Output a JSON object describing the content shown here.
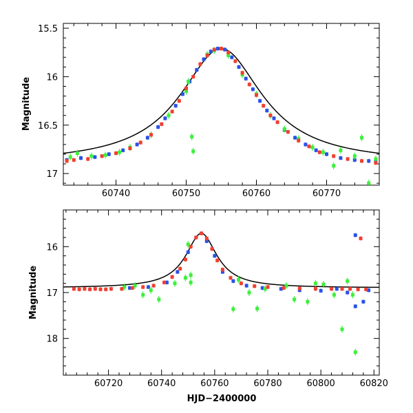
{
  "figure": {
    "xlabel": "HJD−2400000"
  },
  "chart_data": [
    {
      "type": "scatter",
      "name": "zoom-panel",
      "ylabel": "Magnitude",
      "xlim": [
        60732.5,
        60777.5
      ],
      "ylim": [
        17.12,
        15.45
      ],
      "inverted_y": true,
      "xticks": [
        60740,
        60750,
        60760,
        60770
      ],
      "yticks": [
        15.5,
        16,
        16.5,
        17
      ],
      "ytick_labels": [
        "15.5",
        "16",
        "16.5",
        "17"
      ],
      "model_curve": {
        "color": "#000000",
        "baseline_mag": 16.9,
        "peak_mag": 15.71,
        "t0": 60755.0,
        "tE": 8.0
      },
      "series": [
        {
          "color": "#2a52e8",
          "points": [
            [
              60733.0,
              16.86
            ],
            [
              60735.0,
              16.84
            ],
            [
              60737.0,
              16.83
            ],
            [
              60739.0,
              16.8
            ],
            [
              60741.0,
              16.76
            ],
            [
              60743.0,
              16.7
            ],
            [
              60744.5,
              16.63
            ],
            [
              60746.0,
              16.52
            ],
            [
              60747.0,
              16.43
            ],
            [
              60748.5,
              16.3
            ],
            [
              60749.5,
              16.18
            ],
            [
              60750.5,
              16.05
            ],
            [
              60751.5,
              15.93
            ],
            [
              60752.5,
              15.82
            ],
            [
              60753.5,
              15.74
            ],
            [
              60754.5,
              15.71
            ],
            [
              60755.5,
              15.72
            ],
            [
              60756.5,
              15.8
            ],
            [
              60757.5,
              15.9
            ],
            [
              60758.5,
              16.02
            ],
            [
              60759.5,
              16.13
            ],
            [
              60760.5,
              16.25
            ],
            [
              60761.5,
              16.35
            ],
            [
              60762.5,
              16.43
            ],
            [
              60764.0,
              16.55
            ],
            [
              60765.5,
              16.63
            ],
            [
              60767.0,
              16.7
            ],
            [
              60768.5,
              16.76
            ],
            [
              60770.0,
              16.8
            ],
            [
              60772.0,
              16.84
            ],
            [
              60774.0,
              16.86
            ],
            [
              60776.0,
              16.87
            ],
            [
              60777.0,
              16.88
            ]
          ]
        },
        {
          "color": "#3cf03c",
          "points": [
            [
              60733.5,
              16.83
            ],
            [
              60734.5,
              16.79
            ],
            [
              60736.5,
              16.82
            ],
            [
              60738.5,
              16.81
            ],
            [
              60740.5,
              16.78
            ],
            [
              60742.0,
              16.73
            ],
            [
              60745.0,
              16.6
            ],
            [
              60747.5,
              16.4
            ],
            [
              60750.0,
              16.15
            ],
            [
              60750.3,
              16.05
            ],
            [
              60750.8,
              16.62
            ],
            [
              60751.0,
              16.77
            ],
            [
              60753.0,
              15.77
            ],
            [
              60754.0,
              15.73
            ],
            [
              60756.0,
              15.78
            ],
            [
              60758.0,
              15.98
            ],
            [
              60760.0,
              16.18
            ],
            [
              60762.0,
              16.4
            ],
            [
              60764.0,
              16.54
            ],
            [
              60766.0,
              16.64
            ],
            [
              60768.0,
              16.73
            ],
            [
              60769.5,
              16.78
            ],
            [
              60771.0,
              16.92
            ],
            [
              60772.0,
              16.76
            ],
            [
              60774.0,
              16.82
            ],
            [
              60775.0,
              16.63
            ],
            [
              60776.0,
              17.1
            ],
            [
              60777.0,
              16.85
            ]
          ]
        },
        {
          "color": "#f04030",
          "points": [
            [
              60733.0,
              16.87
            ],
            [
              60734.0,
              16.86
            ],
            [
              60736.0,
              16.85
            ],
            [
              60738.0,
              16.82
            ],
            [
              60740.0,
              16.79
            ],
            [
              60742.0,
              16.74
            ],
            [
              60743.5,
              16.68
            ],
            [
              60745.0,
              16.6
            ],
            [
              60746.5,
              16.49
            ],
            [
              60748.0,
              16.36
            ],
            [
              60749.0,
              16.25
            ],
            [
              60750.0,
              16.12
            ],
            [
              60751.0,
              16.0
            ],
            [
              60752.0,
              15.87
            ],
            [
              60753.0,
              15.78
            ],
            [
              60754.0,
              15.72
            ],
            [
              60755.0,
              15.71
            ],
            [
              60756.0,
              15.75
            ],
            [
              60757.0,
              15.84
            ],
            [
              60758.0,
              15.96
            ],
            [
              60759.0,
              16.08
            ],
            [
              60760.0,
              16.19
            ],
            [
              60761.0,
              16.3
            ],
            [
              60762.0,
              16.4
            ],
            [
              60763.0,
              16.47
            ],
            [
              60764.5,
              16.57
            ],
            [
              60766.0,
              16.66
            ],
            [
              60767.5,
              16.72
            ],
            [
              60769.0,
              16.78
            ],
            [
              60771.0,
              16.82
            ],
            [
              60773.0,
              16.85
            ],
            [
              60775.0,
              16.87
            ],
            [
              60777.0,
              16.89
            ]
          ]
        }
      ]
    },
    {
      "type": "scatter",
      "name": "full-panel",
      "ylabel": "Magnitude",
      "xlim": [
        60703,
        60822
      ],
      "ylim": [
        18.8,
        15.2
      ],
      "inverted_y": true,
      "xticks": [
        60720,
        60740,
        60760,
        60780,
        60800,
        60820
      ],
      "yticks": [
        16,
        17,
        18
      ],
      "ytick_labels": [
        "16",
        "17",
        "18"
      ],
      "model_curve": {
        "color": "#000000",
        "baseline_mag": 16.9,
        "peak_mag": 15.71,
        "t0": 60755.0,
        "tE": 8.0
      },
      "series": [
        {
          "color": "#2a52e8",
          "points": [
            [
              60728,
              16.9
            ],
            [
              60735,
              16.88
            ],
            [
              60742,
              16.78
            ],
            [
              60746,
              16.55
            ],
            [
              60750,
              16.12
            ],
            [
              60753,
              15.8
            ],
            [
              60755,
              15.71
            ],
            [
              60757,
              15.88
            ],
            [
              60760,
              16.2
            ],
            [
              60763,
              16.55
            ],
            [
              60767,
              16.75
            ],
            [
              60772,
              16.85
            ],
            [
              60778,
              16.9
            ],
            [
              60785,
              16.92
            ],
            [
              60792,
              16.95
            ],
            [
              60800,
              16.96
            ],
            [
              60806,
              16.92
            ],
            [
              60810,
              17.0
            ],
            [
              60813,
              15.75
            ],
            [
              60813,
              17.3
            ],
            [
              60816,
              17.2
            ],
            [
              60818,
              16.95
            ]
          ]
        },
        {
          "color": "#3cf03c",
          "points": [
            [
              60726,
              16.88
            ],
            [
              60730,
              16.85
            ],
            [
              60733,
              17.05
            ],
            [
              60736,
              16.95
            ],
            [
              60739,
              17.15
            ],
            [
              60745,
              16.8
            ],
            [
              60749,
              16.68
            ],
            [
              60750,
              15.95
            ],
            [
              60751,
              16.62
            ],
            [
              60751,
              16.78
            ],
            [
              60767,
              17.36
            ],
            [
              60769,
              16.72
            ],
            [
              60773,
              17.0
            ],
            [
              60776,
              17.35
            ],
            [
              60779,
              16.92
            ],
            [
              60787,
              16.85
            ],
            [
              60790,
              17.15
            ],
            [
              60795,
              17.2
            ],
            [
              60798,
              16.8
            ],
            [
              60801,
              16.82
            ],
            [
              60805,
              17.05
            ],
            [
              60808,
              17.8
            ],
            [
              60810,
              16.75
            ],
            [
              60812,
              17.05
            ],
            [
              60813,
              18.3
            ]
          ]
        },
        {
          "color": "#f04030",
          "points": [
            [
              60707,
              16.92
            ],
            [
              60709,
              16.93
            ],
            [
              60711,
              16.92
            ],
            [
              60713,
              16.93
            ],
            [
              60715,
              16.92
            ],
            [
              60717,
              16.93
            ],
            [
              60719,
              16.93
            ],
            [
              60721,
              16.92
            ],
            [
              60725,
              16.92
            ],
            [
              60729,
              16.9
            ],
            [
              60733,
              16.88
            ],
            [
              60737,
              16.85
            ],
            [
              60741,
              16.78
            ],
            [
              60744,
              16.66
            ],
            [
              60747,
              16.48
            ],
            [
              60749,
              16.28
            ],
            [
              60751,
              16.0
            ],
            [
              60753,
              15.8
            ],
            [
              60755,
              15.71
            ],
            [
              60757,
              15.82
            ],
            [
              60759,
              16.05
            ],
            [
              60761,
              16.3
            ],
            [
              60763,
              16.5
            ],
            [
              60766,
              16.68
            ],
            [
              60770,
              16.8
            ],
            [
              60775,
              16.86
            ],
            [
              60780,
              16.88
            ],
            [
              60786,
              16.9
            ],
            [
              60792,
              16.91
            ],
            [
              60798,
              16.92
            ],
            [
              60804,
              16.92
            ],
            [
              60808,
              16.92
            ],
            [
              60811,
              16.92
            ],
            [
              60814,
              16.93
            ],
            [
              60815,
              15.82
            ],
            [
              60817,
              16.93
            ]
          ]
        }
      ]
    }
  ]
}
